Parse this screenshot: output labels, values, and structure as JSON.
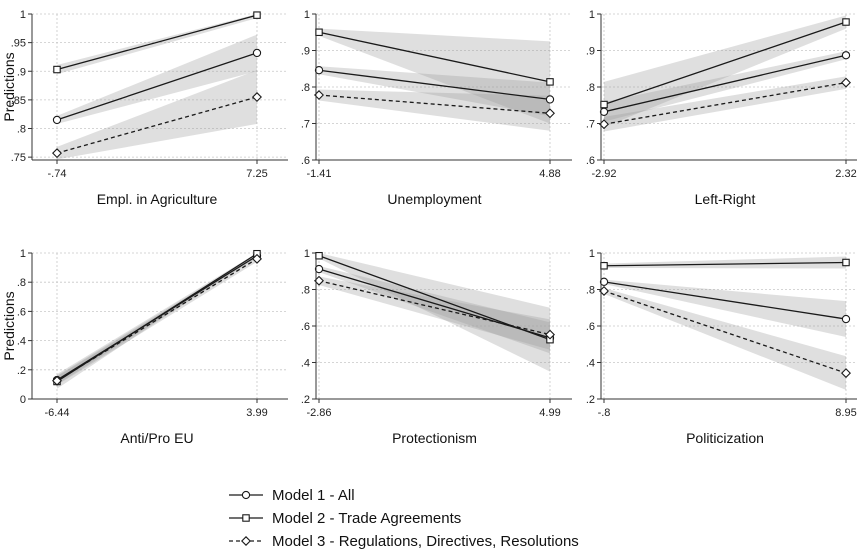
{
  "chart_data": {
    "type": "line",
    "ylabel": "Predictions",
    "colors": {
      "line": "#1a1a1a",
      "band": "#9a9a9a",
      "grid": "#c8c8c8",
      "axis": "#333333"
    },
    "legend": {
      "placement": "bottom",
      "entries": [
        {
          "name": "Model 1 - All",
          "marker": "circle",
          "dash": "solid"
        },
        {
          "name": "Model 2 - Trade Agreements",
          "marker": "square",
          "dash": "solid"
        },
        {
          "name": "Model 3 - Regulations, Directives, Resolutions",
          "marker": "diamond",
          "dash": "dashed"
        }
      ]
    },
    "panels": [
      {
        "xlabel": "Empl. in Agriculture",
        "x": [
          -0.74,
          7.25
        ],
        "xtick_labels": [
          "-.74",
          "7.25"
        ],
        "ylim": [
          0.745,
          1.0
        ],
        "yticks": [
          0.75,
          0.8,
          0.85,
          0.9,
          0.95,
          1.0
        ],
        "ytick_labels": [
          ".75",
          ".8",
          ".85",
          ".9",
          ".95",
          "1"
        ],
        "series": [
          {
            "values": [
              0.815,
              0.932
            ],
            "ci_low": [
              0.808,
              0.9
            ],
            "ci_high": [
              0.822,
              0.964
            ]
          },
          {
            "values": [
              0.903,
              0.998
            ],
            "ci_low": [
              0.895,
              0.993
            ],
            "ci_high": [
              0.911,
              1.0
            ]
          },
          {
            "values": [
              0.757,
              0.855
            ],
            "ci_low": [
              0.746,
              0.808
            ],
            "ci_high": [
              0.768,
              0.902
            ]
          }
        ]
      },
      {
        "xlabel": "Unemployment",
        "x": [
          -1.41,
          4.88
        ],
        "xtick_labels": [
          "-1.41",
          "4.88"
        ],
        "ylim": [
          0.6,
          1.0
        ],
        "yticks": [
          0.6,
          0.7,
          0.8,
          0.9,
          1.0
        ],
        "ytick_labels": [
          ".6",
          ".7",
          ".8",
          ".9",
          "1"
        ],
        "series": [
          {
            "values": [
              0.846,
              0.766
            ],
            "ci_low": [
              0.835,
              0.72
            ],
            "ci_high": [
              0.857,
              0.812
            ]
          },
          {
            "values": [
              0.95,
              0.814
            ],
            "ci_low": [
              0.94,
              0.7
            ],
            "ci_high": [
              0.96,
              0.925
            ]
          },
          {
            "values": [
              0.778,
              0.728
            ],
            "ci_low": [
              0.763,
              0.68
            ],
            "ci_high": [
              0.793,
              0.776
            ]
          }
        ]
      },
      {
        "xlabel": "Left-Right",
        "x": [
          -2.92,
          2.32
        ],
        "xtick_labels": [
          "-2.92",
          "2.32"
        ],
        "ylim": [
          0.6,
          1.0
        ],
        "yticks": [
          0.6,
          0.7,
          0.8,
          0.9,
          1.0
        ],
        "ytick_labels": [
          ".6",
          ".7",
          ".8",
          ".9",
          "1"
        ],
        "series": [
          {
            "values": [
              0.732,
              0.887
            ],
            "ci_low": [
              0.705,
              0.876
            ],
            "ci_high": [
              0.759,
              0.898
            ]
          },
          {
            "values": [
              0.752,
              0.978
            ],
            "ci_low": [
              0.69,
              0.96
            ],
            "ci_high": [
              0.814,
              0.996
            ]
          },
          {
            "values": [
              0.698,
              0.812
            ],
            "ci_low": [
              0.678,
              0.795
            ],
            "ci_high": [
              0.718,
              0.829
            ]
          }
        ]
      },
      {
        "xlabel": "Anti/Pro EU",
        "x": [
          -6.44,
          3.99
        ],
        "xtick_labels": [
          "-6.44",
          "3.99"
        ],
        "ylim": [
          0.0,
          1.0
        ],
        "yticks": [
          0.0,
          0.2,
          0.4,
          0.6,
          0.8,
          1.0
        ],
        "ytick_labels": [
          "0",
          ".2",
          ".4",
          ".6",
          ".8",
          "1"
        ],
        "series": [
          {
            "values": [
              0.13,
              0.98
            ],
            "ci_low": [
              0.1,
              0.968
            ],
            "ci_high": [
              0.16,
              0.992
            ]
          },
          {
            "values": [
              0.12,
              0.995
            ],
            "ci_low": [
              0.07,
              0.985
            ],
            "ci_high": [
              0.17,
              1.0
            ]
          },
          {
            "values": [
              0.125,
              0.96
            ],
            "ci_low": [
              0.095,
              0.94
            ],
            "ci_high": [
              0.155,
              0.98
            ]
          }
        ]
      },
      {
        "xlabel": "Protectionism",
        "x": [
          -2.86,
          4.99
        ],
        "xtick_labels": [
          "-2.86",
          "4.99"
        ],
        "ylim": [
          0.2,
          1.0
        ],
        "yticks": [
          0.2,
          0.4,
          0.6,
          0.8,
          1.0
        ],
        "ytick_labels": [
          ".2",
          ".4",
          ".6",
          ".8",
          "1"
        ],
        "series": [
          {
            "values": [
              0.912,
              0.535
            ],
            "ci_low": [
              0.895,
              0.45
            ],
            "ci_high": [
              0.929,
              0.62
            ]
          },
          {
            "values": [
              0.985,
              0.525
            ],
            "ci_low": [
              0.97,
              0.35
            ],
            "ci_high": [
              1.0,
              0.7
            ]
          },
          {
            "values": [
              0.848,
              0.553
            ],
            "ci_low": [
              0.825,
              0.47
            ],
            "ci_high": [
              0.871,
              0.636
            ]
          }
        ]
      },
      {
        "xlabel": "Politicization",
        "x": [
          -0.8,
          8.95
        ],
        "xtick_labels": [
          "-.8",
          "8.95"
        ],
        "ylim": [
          0.2,
          1.0
        ],
        "yticks": [
          0.2,
          0.4,
          0.6,
          0.8,
          1.0
        ],
        "ytick_labels": [
          ".2",
          ".4",
          ".6",
          ".8",
          "1"
        ],
        "series": [
          {
            "values": [
              0.842,
              0.638
            ],
            "ci_low": [
              0.83,
              0.54
            ],
            "ci_high": [
              0.854,
              0.736
            ]
          },
          {
            "values": [
              0.93,
              0.948
            ],
            "ci_low": [
              0.918,
              0.915
            ],
            "ci_high": [
              0.942,
              0.981
            ]
          },
          {
            "values": [
              0.792,
              0.342
            ],
            "ci_low": [
              0.776,
              0.25
            ],
            "ci_high": [
              0.808,
              0.434
            ]
          }
        ]
      }
    ]
  }
}
